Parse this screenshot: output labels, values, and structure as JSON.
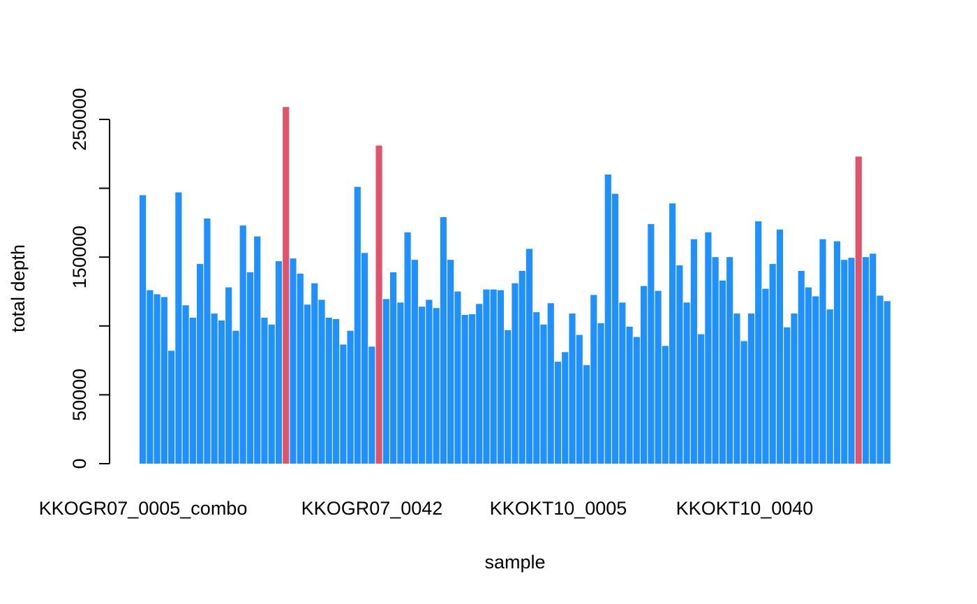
{
  "chart_data": {
    "type": "bar",
    "title": "",
    "xlabel": "sample",
    "ylabel": "total depth",
    "ylim": [
      0,
      250000
    ],
    "yticks": [
      0,
      50000,
      150000,
      250000
    ],
    "grid": false,
    "legend": false,
    "colors": {
      "normal": "#1E90FF",
      "highlight": "#DF536B"
    },
    "category_tick_labels": [
      "KKOGR07_0005_combo",
      "KKOGR07_0042",
      "KKOKT10_0005",
      "KKOKT10_0040"
    ],
    "values": [
      195000,
      126000,
      123000,
      121000,
      82000,
      197000,
      115000,
      106000,
      145000,
      178000,
      109000,
      104000,
      128000,
      96500,
      173000,
      139000,
      165000,
      106000,
      101000,
      147000,
      259000,
      149000,
      138000,
      115500,
      131000,
      119000,
      106000,
      105000,
      86500,
      96500,
      201000,
      153000,
      85000,
      231000,
      119500,
      139000,
      117000,
      168000,
      148000,
      114000,
      119000,
      113000,
      179000,
      148000,
      125000,
      108000,
      108500,
      116000,
      126500,
      126500,
      126000,
      97000,
      131000,
      140000,
      156000,
      110000,
      101000,
      116500,
      74000,
      81000,
      109000,
      93500,
      71500,
      122500,
      102000,
      210000,
      196000,
      117000,
      99500,
      92000,
      129000,
      174000,
      125500,
      85500,
      189000,
      144000,
      117000,
      163000,
      94000,
      168000,
      150000,
      133000,
      150000,
      109000,
      89000,
      109000,
      176000,
      127000,
      145000,
      170000,
      99000,
      109000,
      140000,
      128000,
      121500,
      163000,
      112000,
      161500,
      148000,
      149500,
      223000,
      150000,
      152500,
      122000,
      118000
    ],
    "highlight_indices": [
      20,
      33,
      100
    ]
  }
}
